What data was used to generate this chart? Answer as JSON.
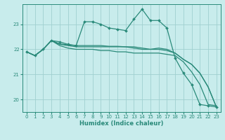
{
  "xlabel": "Humidex (Indice chaleur)",
  "background_color": "#c8ecec",
  "grid_color": "#a0d0d0",
  "line_color": "#2a8a7a",
  "xlim": [
    -0.5,
    23.5
  ],
  "ylim": [
    19.5,
    23.8
  ],
  "yticks": [
    20,
    21,
    22,
    23
  ],
  "xticks": [
    0,
    1,
    2,
    3,
    4,
    5,
    6,
    7,
    8,
    9,
    10,
    11,
    12,
    13,
    14,
    15,
    16,
    17,
    18,
    19,
    20,
    21,
    22,
    23
  ],
  "series": [
    [
      21.9,
      21.75,
      22.0,
      22.35,
      22.3,
      22.2,
      22.15,
      23.1,
      23.1,
      23.0,
      22.85,
      22.8,
      22.75,
      23.2,
      23.6,
      23.15,
      23.15,
      22.85,
      21.65,
      21.05,
      20.6,
      19.8,
      19.75,
      19.7
    ],
    [
      21.9,
      21.75,
      22.0,
      22.35,
      22.15,
      22.05,
      22.0,
      22.0,
      22.0,
      21.95,
      21.95,
      21.9,
      21.9,
      21.85,
      21.85,
      21.85,
      21.85,
      21.8,
      21.75,
      21.5,
      21.1,
      20.6,
      19.8,
      19.75
    ],
    [
      21.9,
      21.75,
      22.0,
      22.35,
      22.2,
      22.15,
      22.1,
      22.1,
      22.1,
      22.1,
      22.1,
      22.1,
      22.1,
      22.05,
      22.0,
      22.0,
      22.0,
      21.95,
      21.85,
      21.6,
      21.4,
      21.05,
      20.5,
      19.7
    ],
    [
      21.9,
      21.75,
      22.0,
      22.35,
      22.22,
      22.18,
      22.15,
      22.15,
      22.15,
      22.15,
      22.12,
      22.12,
      22.1,
      22.1,
      22.05,
      22.0,
      22.05,
      22.0,
      21.85,
      21.6,
      21.4,
      21.05,
      20.5,
      19.7
    ]
  ]
}
